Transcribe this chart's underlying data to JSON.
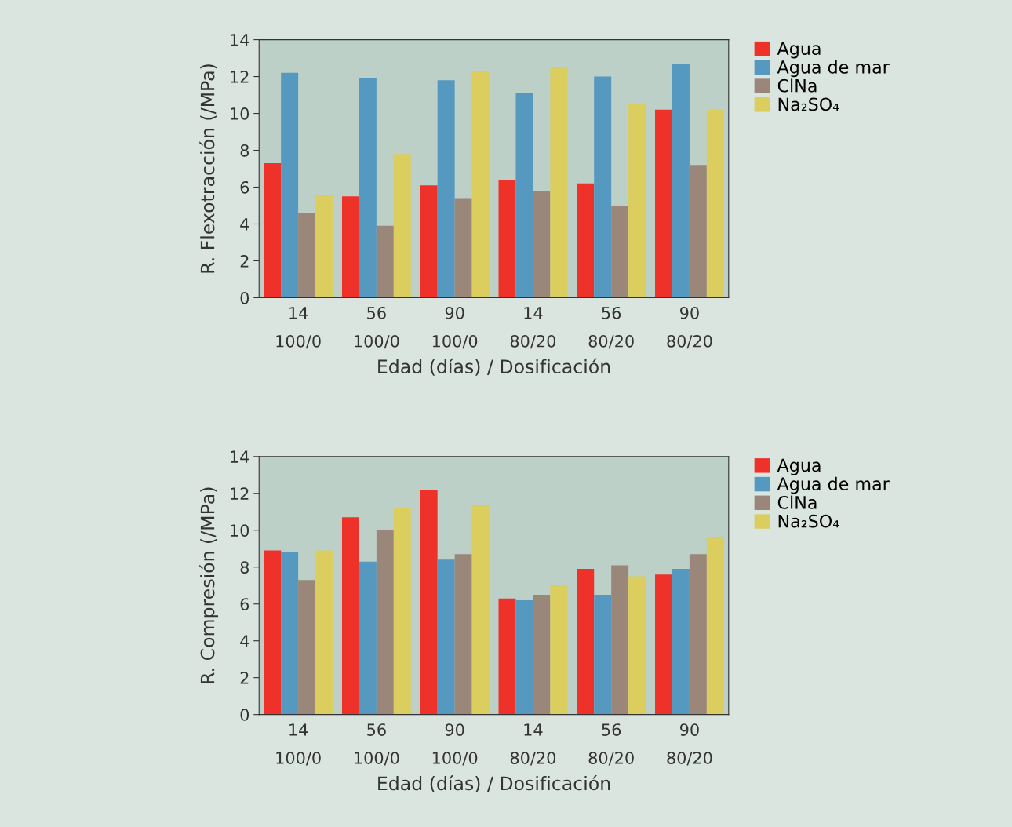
{
  "chart_data": [
    {
      "type": "bar",
      "xlabel": "Edad (días) / Dosificación",
      "ylabel": "R. Flexotracción (/MPa)",
      "categories": [
        "14\n100/0",
        "56\n100/0",
        "90\n100/0",
        "14\n80/20",
        "56\n80/20",
        "90\n80/20"
      ],
      "series": [
        {
          "name": "Agua",
          "color": "#ee3229",
          "values": [
            7.3,
            5.5,
            6.1,
            6.4,
            6.2,
            10.2
          ]
        },
        {
          "name": "Agua de mar",
          "color": "#5599c0",
          "values": [
            12.2,
            11.9,
            11.8,
            11.1,
            12.0,
            12.7
          ]
        },
        {
          "name": "ClNa",
          "color": "#9a877a",
          "values": [
            4.6,
            3.9,
            5.4,
            5.8,
            5.0,
            7.2
          ]
        },
        {
          "name": "Na₂SO₄",
          "color": "#dbcd5e",
          "values": [
            5.6,
            7.8,
            12.3,
            12.5,
            10.5,
            10.2
          ]
        }
      ],
      "ylim": [
        0,
        14
      ],
      "yticks": [
        0,
        2,
        4,
        6,
        8,
        10,
        12,
        14
      ],
      "legend": "right"
    },
    {
      "type": "bar",
      "xlabel": "Edad (días) / Dosificación",
      "ylabel": "R. Compresión (/MPa)",
      "categories": [
        "14\n100/0",
        "56\n100/0",
        "90\n100/0",
        "14\n80/20",
        "56\n80/20",
        "90\n80/20"
      ],
      "series": [
        {
          "name": "Agua",
          "color": "#ee3229",
          "values": [
            8.9,
            10.7,
            12.2,
            6.3,
            7.9,
            7.6
          ]
        },
        {
          "name": "Agua de mar",
          "color": "#5599c0",
          "values": [
            8.8,
            8.3,
            8.4,
            6.2,
            6.5,
            7.9
          ]
        },
        {
          "name": "ClNa",
          "color": "#9a877a",
          "values": [
            7.3,
            10.0,
            8.7,
            6.5,
            8.1,
            8.7
          ]
        },
        {
          "name": "Na₂SO₄",
          "color": "#dbcd5e",
          "values": [
            8.9,
            11.2,
            11.4,
            7.0,
            7.5,
            9.6
          ]
        }
      ],
      "ylim": [
        0,
        14
      ],
      "yticks": [
        0,
        2,
        4,
        6,
        8,
        10,
        12,
        14
      ],
      "legend": "right"
    }
  ]
}
